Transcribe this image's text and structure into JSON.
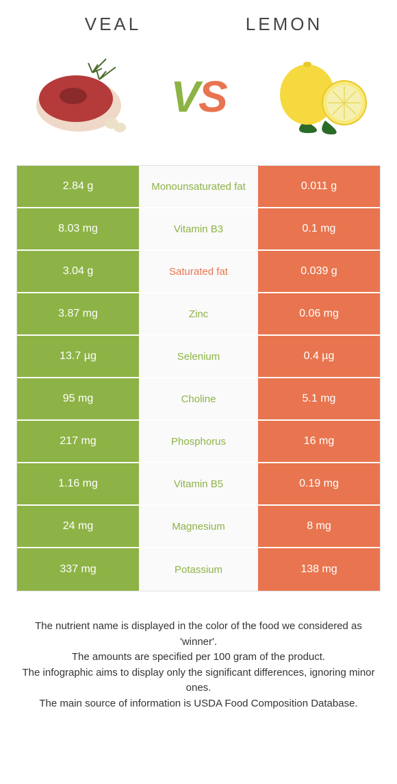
{
  "header": {
    "left_title": "VEAL",
    "right_title": "LEMON",
    "vs_v": "V",
    "vs_s": "S"
  },
  "colors": {
    "left": "#8db346",
    "right": "#e8754f",
    "mid_bg": "#fafafa",
    "text": "#333333"
  },
  "table": {
    "rows": [
      {
        "left": "2.84 g",
        "label": "Monounsaturated fat",
        "right": "0.011 g",
        "winner": "left"
      },
      {
        "left": "8.03 mg",
        "label": "Vitamin B3",
        "right": "0.1 mg",
        "winner": "left"
      },
      {
        "left": "3.04 g",
        "label": "Saturated fat",
        "right": "0.039 g",
        "winner": "right"
      },
      {
        "left": "3.87 mg",
        "label": "Zinc",
        "right": "0.06 mg",
        "winner": "left"
      },
      {
        "left": "13.7 µg",
        "label": "Selenium",
        "right": "0.4 µg",
        "winner": "left"
      },
      {
        "left": "95 mg",
        "label": "Choline",
        "right": "5.1 mg",
        "winner": "left"
      },
      {
        "left": "217 mg",
        "label": "Phosphorus",
        "right": "16 mg",
        "winner": "left"
      },
      {
        "left": "1.16 mg",
        "label": "Vitamin B5",
        "right": "0.19 mg",
        "winner": "left"
      },
      {
        "left": "24 mg",
        "label": "Magnesium",
        "right": "8 mg",
        "winner": "left"
      },
      {
        "left": "337 mg",
        "label": "Potassium",
        "right": "138 mg",
        "winner": "left"
      }
    ]
  },
  "footer": {
    "line1": "The nutrient name is displayed in the color of the food we considered as 'winner'.",
    "line2": "The amounts are specified per 100 gram of the product.",
    "line3": "The infographic aims to display only the significant differences, ignoring minor ones.",
    "line4": "The main source of information is USDA Food Composition Database."
  }
}
